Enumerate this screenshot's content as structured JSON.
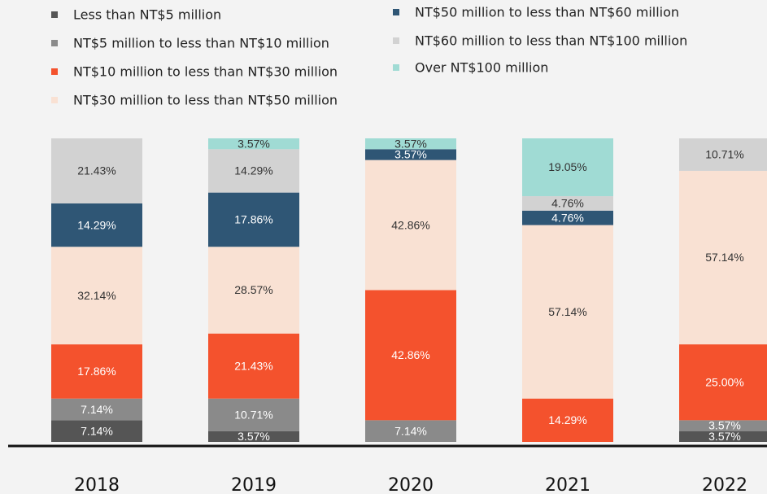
{
  "chart_data": {
    "type": "stacked_bar",
    "categories": [
      "2018",
      "2019",
      "2020",
      "2021",
      "2022"
    ],
    "series": [
      {
        "name": "Less than NT$5 million",
        "color": "#555555",
        "values": [
          7.14,
          3.57,
          0,
          0,
          3.57
        ],
        "value_labels": [
          "7.14%",
          "3.57%",
          null,
          null,
          "3.57%"
        ]
      },
      {
        "name": "NT$5 million to less than NT$10 million",
        "color": "#8a8a8a",
        "values": [
          7.14,
          10.71,
          7.14,
          0,
          3.57
        ],
        "value_labels": [
          "7.14%",
          "10.71%",
          "7.14%",
          null,
          "3.57%"
        ]
      },
      {
        "name": "NT$10 million to less than NT$30 million",
        "color": "#f4522d",
        "values": [
          17.86,
          21.43,
          42.86,
          14.29,
          25.0
        ],
        "value_labels": [
          "17.86%",
          "21.43%",
          "42.86%",
          "14.29%",
          "25.00%"
        ]
      },
      {
        "name": "NT$30 million to less than NT$50 million",
        "color": "#f9e1d3",
        "values": [
          32.14,
          28.57,
          42.86,
          57.14,
          57.14
        ],
        "value_labels": [
          "32.14%",
          "28.57%",
          "42.86%",
          "57.14%",
          "57.14%"
        ]
      },
      {
        "name": "NT$50 million to less than NT$60 million",
        "color": "#2f5675",
        "values": [
          14.29,
          17.86,
          3.57,
          4.76,
          0
        ],
        "value_labels": [
          "14.29%",
          "17.86%",
          "3.57%",
          "4.76%",
          null
        ]
      },
      {
        "name": "NT$60 million to less than NT$100 million",
        "color": "#d2d2d2",
        "values": [
          21.43,
          14.29,
          0,
          4.76,
          10.71
        ],
        "value_labels": [
          "21.43%",
          "14.29%",
          null,
          "4.76%",
          "10.71%"
        ]
      },
      {
        "name": "Over NT$100 million",
        "color": "#a0dbd4",
        "values": [
          0,
          3.57,
          3.57,
          19.05,
          0
        ],
        "value_labels": [
          null,
          "3.57%",
          "3.57%",
          "19.05%",
          null
        ]
      }
    ]
  }
}
